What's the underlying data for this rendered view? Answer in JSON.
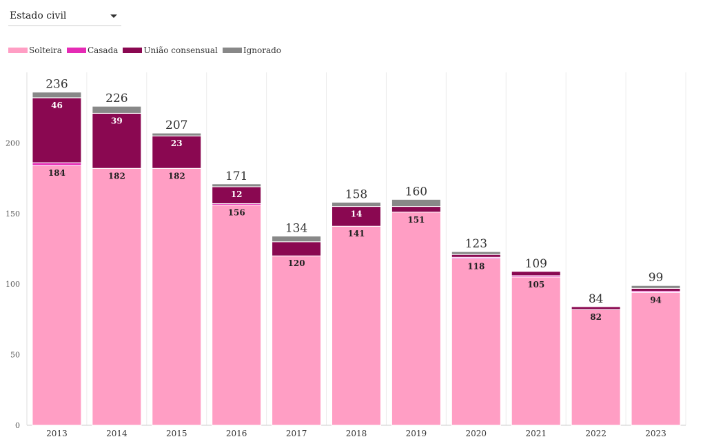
{
  "filter": {
    "selected": "Estado civil",
    "icon": "caret-down-icon"
  },
  "legend": [
    {
      "label": "Solteira",
      "color": "#ff9ec4"
    },
    {
      "label": "Casada",
      "color": "#e52bb5"
    },
    {
      "label": "União consensual",
      "color": "#8a0851"
    },
    {
      "label": "Ignorado",
      "color": "#888888"
    }
  ],
  "chart_data": {
    "type": "bar",
    "stacked": true,
    "categories": [
      "2013",
      "2014",
      "2015",
      "2016",
      "2017",
      "2018",
      "2019",
      "2020",
      "2021",
      "2022",
      "2023"
    ],
    "series": [
      {
        "name": "Solteira",
        "color": "#ff9ec4",
        "values": [
          184,
          182,
          182,
          156,
          120,
          141,
          151,
          118,
          105,
          82,
          94
        ],
        "labels": [
          "184",
          "182",
          "182",
          "156",
          "120",
          "141",
          "151",
          "118",
          "105",
          "82",
          "94"
        ]
      },
      {
        "name": "Casada",
        "color": "#e52bb5",
        "values": [
          2,
          0,
          0,
          1,
          0,
          0,
          0,
          1,
          1,
          0,
          1
        ],
        "labels": [
          "",
          "",
          "",
          "",
          "",
          "",
          "",
          "",
          "",
          "",
          ""
        ]
      },
      {
        "name": "União consensual",
        "color": "#8a0851",
        "values": [
          46,
          39,
          23,
          12,
          10,
          14,
          4,
          2,
          3,
          2,
          2
        ],
        "labels": [
          "46",
          "39",
          "23",
          "12",
          "",
          "14",
          "",
          "",
          "",
          "",
          ""
        ]
      },
      {
        "name": "Ignorado",
        "color": "#888888",
        "values": [
          4,
          5,
          2,
          2,
          4,
          3,
          5,
          2,
          0,
          0,
          2
        ],
        "labels": [
          "",
          "",
          "",
          "",
          "",
          "",
          "",
          "",
          "",
          "",
          ""
        ]
      }
    ],
    "totals": [
      "236",
      "226",
      "207",
      "171",
      "134",
      "158",
      "160",
      "123",
      "109",
      "84",
      "99"
    ],
    "y_ticks": [
      "0",
      "50",
      "100",
      "150",
      "200"
    ],
    "ylim": [
      0,
      250
    ],
    "grid": "vertical",
    "legend_position": "top-left"
  }
}
